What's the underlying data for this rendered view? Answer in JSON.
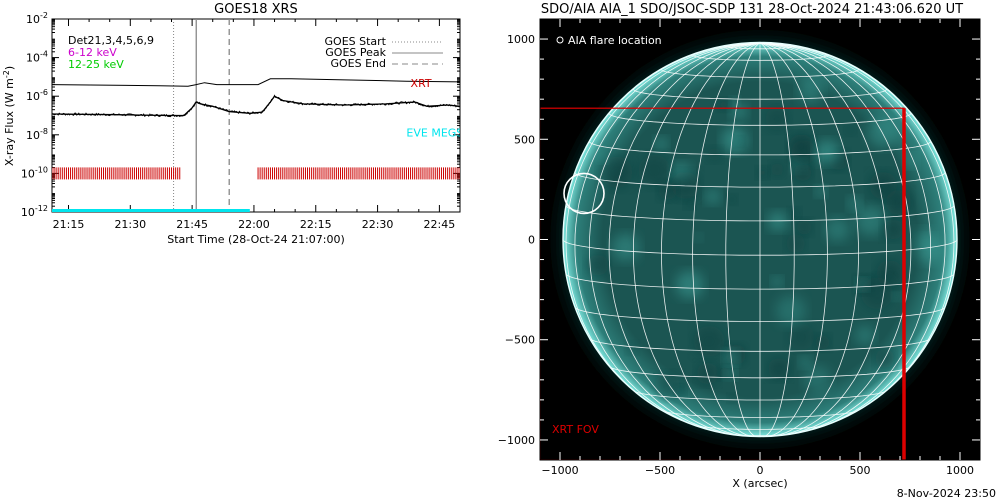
{
  "footer_date": "8-Nov-2024 23:50",
  "chart_data": [
    {
      "type": "line",
      "title": "GOES18 XRS",
      "xlabel": "Start Time (28-Oct-24 21:07:00)",
      "ylabel_main": "X-ray Flux (W m",
      "ylabel_sup": "-2",
      "ylabel_end": ")",
      "y_scale": "log",
      "ylim": [
        1e-12,
        0.01
      ],
      "y_ticks": [
        {
          "exp": -12,
          "base": "10",
          "sup": "-12"
        },
        {
          "exp": -10,
          "base": "10",
          "sup": "-10"
        },
        {
          "exp": -8,
          "base": "10",
          "sup": "-8"
        },
        {
          "exp": -6,
          "base": "10",
          "sup": "-6"
        },
        {
          "exp": -4,
          "base": "10",
          "sup": "-4"
        },
        {
          "exp": -2,
          "base": "10",
          "sup": "-2"
        }
      ],
      "x_range_minutes": [
        4,
        103
      ],
      "x_ticks": [
        {
          "min": 8,
          "label": "21:15"
        },
        {
          "min": 23,
          "label": "21:30"
        },
        {
          "min": 38,
          "label": "21:45"
        },
        {
          "min": 53,
          "label": "22:00"
        },
        {
          "min": 68,
          "label": "22:15"
        },
        {
          "min": 83,
          "label": "22:30"
        },
        {
          "min": 98,
          "label": "22:45"
        }
      ],
      "legend_left": [
        {
          "text": "Det21,3,4,5,6,9",
          "color": "#000000"
        },
        {
          "text": "6-12 keV",
          "color": "#cc00cc"
        },
        {
          "text": "12-25 keV",
          "color": "#00cc00"
        }
      ],
      "legend_right": [
        {
          "text": "GOES Start",
          "style": "dotted"
        },
        {
          "text": "GOES Peak",
          "style": "solid"
        },
        {
          "text": "GOES End",
          "style": "dashed"
        }
      ],
      "event_lines": {
        "start_min": 33.5,
        "peak_min": 39,
        "end_min": 47
      },
      "series": [
        {
          "name": "long channel",
          "color": "#000000",
          "x": [
            4,
            30,
            37,
            39,
            41,
            44,
            54,
            57,
            62,
            75,
            90,
            103
          ],
          "y": [
            4e-06,
            3.5e-06,
            3.3e-06,
            4e-06,
            5e-06,
            4e-06,
            4e-06,
            8e-06,
            8e-06,
            7e-06,
            6e-06,
            5.5e-06
          ]
        },
        {
          "name": "short channel",
          "color": "#000000",
          "x": [
            4,
            20,
            32,
            36,
            38,
            39,
            40,
            43,
            47,
            52,
            55,
            57,
            58,
            60,
            65,
            75,
            85,
            92,
            95,
            100,
            103
          ],
          "y": [
            1.2e-07,
            1.1e-07,
            1e-07,
            1e-07,
            2.5e-07,
            5e-07,
            4e-07,
            3e-07,
            1.6e-07,
            1.3e-07,
            1.5e-07,
            5e-07,
            1e-06,
            6e-07,
            4e-07,
            3.5e-07,
            4e-07,
            5e-07,
            3e-07,
            3.5e-07,
            3e-07
          ]
        }
      ],
      "annotations": [
        {
          "text": "XRT",
          "color": "#cc0000"
        },
        {
          "text": "EVE MEGS-B",
          "color": "#00e5ee"
        }
      ],
      "xrt_coverage": [
        [
          4,
          35
        ],
        [
          54,
          103
        ]
      ],
      "eve_coverage": [
        [
          4,
          52
        ]
      ],
      "coverage_colors": {
        "xrt": "#cc0000",
        "eve": "#00e5ee"
      }
    },
    {
      "type": "image",
      "title": "SDO/AIA AIA_1 SDO/JSOC-SDP 131 28-Oct-2024 21:43:06.620 UT",
      "xlabel": "X (arcsec)",
      "xlim": [
        -1100,
        1100
      ],
      "ylim": [
        -1100,
        1100
      ],
      "x_ticks": [
        -1000,
        -500,
        0,
        500,
        1000
      ],
      "y_ticks": [
        -1000,
        -500,
        0,
        500,
        1000
      ],
      "solar_radius_arcsec": 985,
      "flare_location": {
        "x": -880,
        "y": 230,
        "label": "AIA flare location"
      },
      "xrt_fov": {
        "x0": -1100,
        "x1": 720,
        "y0": -1100,
        "y1": 655,
        "label": "XRT FOV",
        "color": "#dd0000"
      },
      "colors": {
        "disk": "#1d5c5a",
        "grid": "#ffffff"
      }
    }
  ]
}
